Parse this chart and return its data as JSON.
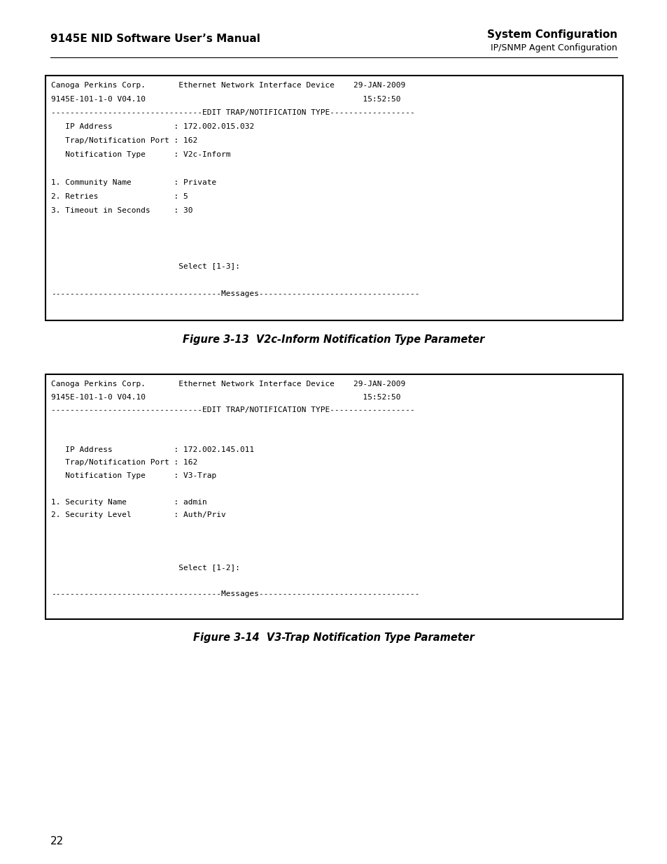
{
  "page_bg": "#ffffff",
  "header_left": "9145E NID Software User’s Manual",
  "header_right_top": "System Configuration",
  "header_right_bot": "IP/SNMP Agent Configuration",
  "page_number": "22",
  "fig1_caption": "Figure 3-13  V2c-Inform Notification Type Parameter",
  "fig2_caption": "Figure 3-14  V3-Trap Notification Type Parameter",
  "fig1_lines": [
    "Canoga Perkins Corp.       Ethernet Network Interface Device    29-JAN-2009",
    "9145E-101-1-0 V04.10                                              15:52:50",
    "--------------------------------EDIT TRAP/NOTIFICATION TYPE------------------",
    "   IP Address             : 172.002.015.032",
    "   Trap/Notification Port : 162",
    "   Notification Type      : V2c-Inform",
    "",
    "1. Community Name         : Private",
    "2. Retries                : 5",
    "3. Timeout in Seconds     : 30",
    "",
    "",
    "",
    "                           Select [1-3]:",
    "",
    "------------------------------------Messages----------------------------------",
    ""
  ],
  "fig2_lines": [
    "Canoga Perkins Corp.       Ethernet Network Interface Device    29-JAN-2009",
    "9145E-101-1-0 V04.10                                              15:52:50",
    "--------------------------------EDIT TRAP/NOTIFICATION TYPE------------------",
    "",
    "",
    "   IP Address             : 172.002.145.011",
    "   Trap/Notification Port : 162",
    "   Notification Type      : V3-Trap",
    "",
    "1. Security Name          : admin",
    "2. Security Level         : Auth/Priv",
    "",
    "",
    "",
    "                           Select [1-2]:",
    "",
    "------------------------------------Messages----------------------------------",
    ""
  ],
  "mono_font_size": 8.0,
  "box_bg": "#ffffff",
  "box_edge": "#000000",
  "text_color": "#000000",
  "header_font_size": 11,
  "caption_font_size": 10.5
}
